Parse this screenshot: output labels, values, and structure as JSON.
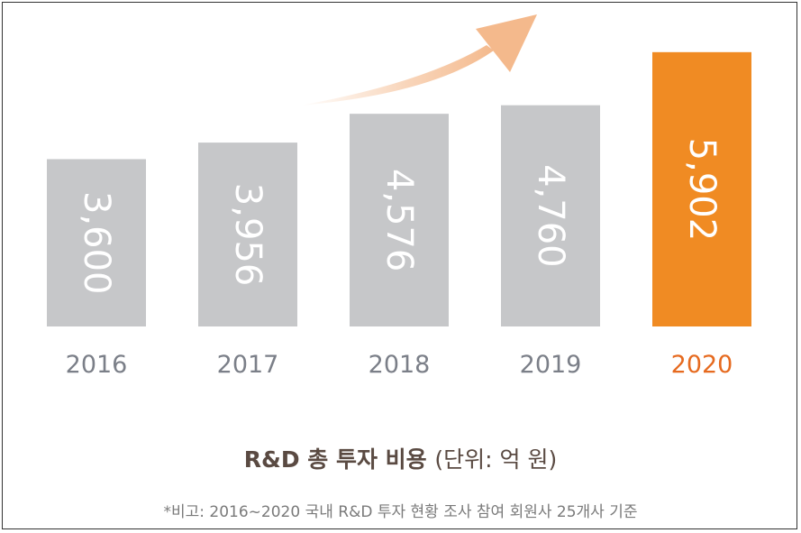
{
  "chart_data": {
    "type": "bar",
    "categories": [
      "2016",
      "2017",
      "2018",
      "2019",
      "2020"
    ],
    "values": [
      3600,
      3956,
      4576,
      4760,
      5902
    ],
    "value_labels": [
      "3,600",
      "3,956",
      "4,576",
      "4,760",
      "5,902"
    ],
    "highlight_category": "2020",
    "title": "R&D 총 투자 비용",
    "title_unit": "(단위: 억 원)",
    "note": "*비고: 2016~2020 국내 R&D 투자 현황 조사 참여 회원사 25개사 기준",
    "ylim": [
      0,
      6500
    ],
    "grid": false,
    "legend": "none"
  },
  "colors": {
    "bar": "#c6c7c9",
    "highlight_bar": "#f08b23",
    "year_label": "#7b7f88",
    "highlight_year_label": "#e66a1f",
    "arrow": "#f6c7a3"
  },
  "icons": {
    "trend": "trend-up-arrow-icon"
  }
}
